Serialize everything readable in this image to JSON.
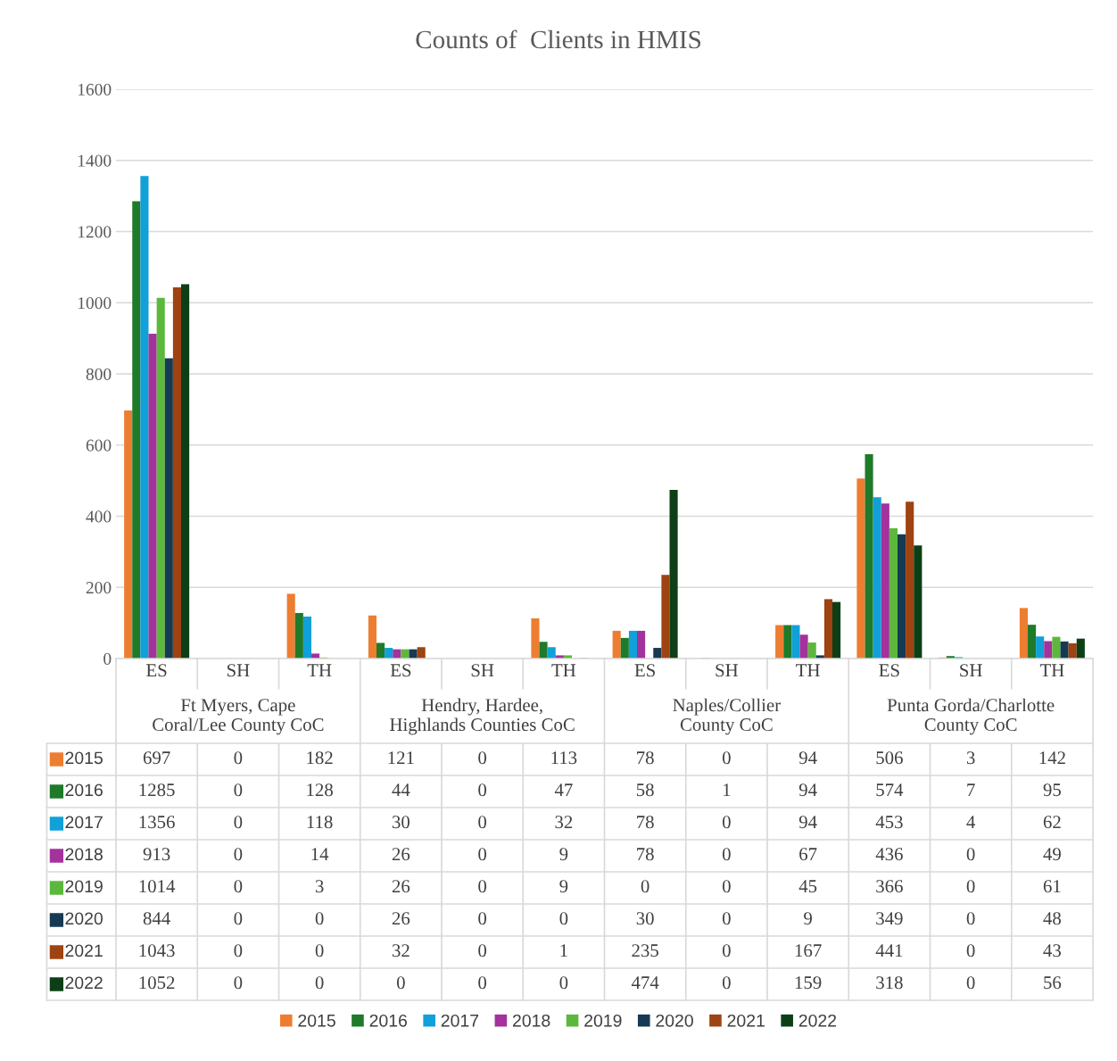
{
  "chart_data": {
    "type": "bar",
    "title": "Counts of  Clients in HMIS",
    "categories": [
      "ES",
      "SH",
      "TH",
      "ES",
      "SH",
      "TH",
      "ES",
      "SH",
      "TH",
      "ES",
      "SH",
      "TH"
    ],
    "annotations": [
      "Ft Myers, Cape Coral/Lee County CoC",
      "Hendry, Hardee, Highlands Counties CoC",
      "Naples/Collier County CoC",
      "Punta Gorda/Charlotte County CoC"
    ],
    "series": [
      {
        "name": "2015",
        "color": "#ed7d31",
        "values": [
          697,
          0,
          182,
          121,
          0,
          113,
          78,
          0,
          94,
          506,
          3,
          142
        ]
      },
      {
        "name": "2016",
        "color": "#1f7a2a",
        "values": [
          1285,
          0,
          128,
          44,
          0,
          47,
          58,
          1,
          94,
          574,
          7,
          95
        ]
      },
      {
        "name": "2017",
        "color": "#11a0d8",
        "values": [
          1356,
          0,
          118,
          30,
          0,
          32,
          78,
          0,
          94,
          453,
          4,
          62
        ]
      },
      {
        "name": "2018",
        "color": "#a3329c",
        "values": [
          913,
          0,
          14,
          26,
          0,
          9,
          78,
          0,
          67,
          436,
          0,
          49
        ]
      },
      {
        "name": "2019",
        "color": "#5cb83c",
        "values": [
          1014,
          0,
          3,
          26,
          0,
          9,
          0,
          0,
          45,
          366,
          0,
          61
        ]
      },
      {
        "name": "2020",
        "color": "#163a52",
        "values": [
          844,
          0,
          0,
          26,
          0,
          0,
          30,
          0,
          9,
          349,
          0,
          48
        ]
      },
      {
        "name": "2021",
        "color": "#9e4311",
        "values": [
          1043,
          0,
          0,
          32,
          0,
          1,
          235,
          0,
          167,
          441,
          0,
          43
        ]
      },
      {
        "name": "2022",
        "color": "#0c3f16",
        "values": [
          1052,
          0,
          0,
          0,
          0,
          0,
          474,
          0,
          159,
          318,
          0,
          56
        ]
      }
    ],
    "ylim": [
      0,
      1600
    ],
    "yticks": [
      0,
      200,
      400,
      600,
      800,
      1000,
      1200,
      1400,
      1600
    ],
    "grid": "y",
    "legend": "bottom",
    "data_labels": true
  }
}
